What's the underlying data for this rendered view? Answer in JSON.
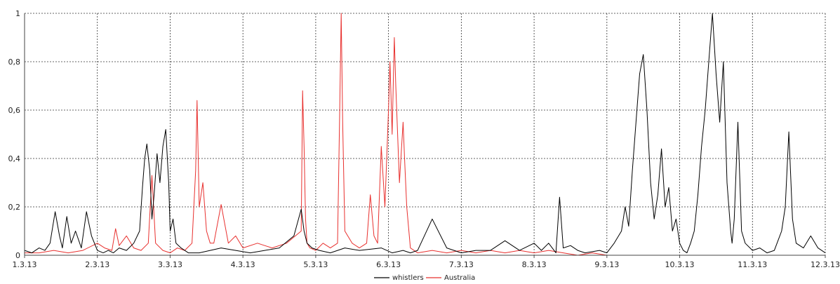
{
  "chart_data": {
    "type": "line",
    "title": "",
    "xlabel": "",
    "ylabel": "",
    "x_ticks": [
      "1.3.13",
      "2.3.13",
      "3.3.13",
      "4.3.13",
      "5.3.13",
      "6.3.13",
      "7.3.13",
      "8.3.13",
      "9.3.13",
      "10.3.13",
      "11.3.13",
      "12.3.13"
    ],
    "y_ticks": [
      "0",
      "0,2",
      "0,4",
      "0,6",
      "0,8",
      "1"
    ],
    "xlim": [
      1,
      12
    ],
    "ylim": [
      0,
      1
    ],
    "grid": true,
    "legend_position": "bottom-center",
    "series": [
      {
        "name": "whistlers",
        "color": "#000000",
        "x": [
          1.0,
          1.1,
          1.2,
          1.28,
          1.35,
          1.42,
          1.48,
          1.52,
          1.58,
          1.64,
          1.7,
          1.78,
          1.85,
          1.92,
          2.0,
          2.08,
          2.15,
          2.22,
          2.3,
          2.4,
          2.5,
          2.58,
          2.62,
          2.65,
          2.68,
          2.72,
          2.75,
          2.78,
          2.82,
          2.86,
          2.9,
          2.94,
          2.98,
          3.0,
          3.04,
          3.08,
          3.15,
          3.25,
          3.4,
          3.55,
          3.7,
          3.9,
          4.1,
          4.3,
          4.5,
          4.7,
          4.8,
          4.84,
          4.88,
          4.95,
          5.05,
          5.2,
          5.4,
          5.6,
          5.9,
          6.05,
          6.2,
          6.3,
          6.4,
          6.6,
          6.8,
          7.0,
          7.2,
          7.4,
          7.6,
          7.8,
          8.0,
          8.1,
          8.2,
          8.3,
          8.35,
          8.4,
          8.5,
          8.6,
          8.7,
          8.9,
          9.0,
          9.1,
          9.2,
          9.25,
          9.3,
          9.35,
          9.4,
          9.45,
          9.5,
          9.55,
          9.6,
          9.65,
          9.7,
          9.75,
          9.8,
          9.85,
          9.9,
          9.95,
          10.0,
          10.05,
          10.1,
          10.15,
          10.2,
          10.25,
          10.3,
          10.35,
          10.4,
          10.45,
          10.5,
          10.55,
          10.6,
          10.65,
          10.7,
          10.72,
          10.75,
          10.8,
          10.85,
          10.9,
          11.0,
          11.1,
          11.2,
          11.3,
          11.35,
          11.4,
          11.45,
          11.5,
          11.55,
          11.6,
          11.7,
          11.8,
          11.9,
          12.0
        ],
        "values": [
          0.02,
          0.01,
          0.03,
          0.02,
          0.05,
          0.18,
          0.08,
          0.03,
          0.16,
          0.05,
          0.1,
          0.03,
          0.18,
          0.08,
          0.02,
          0.01,
          0.02,
          0.01,
          0.03,
          0.02,
          0.05,
          0.1,
          0.28,
          0.4,
          0.46,
          0.35,
          0.15,
          0.25,
          0.42,
          0.3,
          0.45,
          0.52,
          0.3,
          0.1,
          0.15,
          0.05,
          0.03,
          0.01,
          0.01,
          0.02,
          0.03,
          0.02,
          0.01,
          0.02,
          0.03,
          0.08,
          0.19,
          0.1,
          0.05,
          0.03,
          0.02,
          0.01,
          0.03,
          0.02,
          0.03,
          0.01,
          0.02,
          0.01,
          0.02,
          0.15,
          0.03,
          0.01,
          0.02,
          0.02,
          0.06,
          0.02,
          0.05,
          0.02,
          0.05,
          0.01,
          0.24,
          0.03,
          0.04,
          0.02,
          0.01,
          0.02,
          0.01,
          0.05,
          0.1,
          0.2,
          0.12,
          0.35,
          0.55,
          0.75,
          0.83,
          0.6,
          0.3,
          0.15,
          0.25,
          0.44,
          0.2,
          0.28,
          0.1,
          0.15,
          0.05,
          0.02,
          0.01,
          0.05,
          0.1,
          0.25,
          0.45,
          0.6,
          0.8,
          1.0,
          0.75,
          0.55,
          0.8,
          0.3,
          0.1,
          0.05,
          0.15,
          0.55,
          0.1,
          0.05,
          0.02,
          0.03,
          0.01,
          0.02,
          0.06,
          0.1,
          0.2,
          0.51,
          0.15,
          0.05,
          0.03,
          0.08,
          0.03,
          0.01
        ]
      },
      {
        "name": "Australia",
        "color": "#e8302e",
        "x": [
          1.0,
          1.2,
          1.4,
          1.6,
          1.8,
          2.0,
          2.1,
          2.2,
          2.25,
          2.3,
          2.4,
          2.5,
          2.6,
          2.7,
          2.75,
          2.8,
          2.9,
          3.0,
          3.1,
          3.2,
          3.3,
          3.35,
          3.37,
          3.4,
          3.45,
          3.5,
          3.55,
          3.6,
          3.7,
          3.8,
          3.9,
          4.0,
          4.2,
          4.4,
          4.6,
          4.8,
          4.82,
          4.84,
          4.86,
          4.88,
          4.92,
          5.0,
          5.1,
          5.2,
          5.3,
          5.33,
          5.35,
          5.37,
          5.4,
          5.5,
          5.6,
          5.7,
          5.75,
          5.8,
          5.85,
          5.9,
          5.95,
          6.0,
          6.02,
          6.05,
          6.08,
          6.1,
          6.15,
          6.2,
          6.22,
          6.25,
          6.3,
          6.4,
          6.6,
          6.8,
          7.0,
          7.2,
          7.4,
          7.6,
          7.8,
          8.0,
          8.2,
          8.4,
          8.6,
          8.8,
          9.0,
          9.2,
          9.5,
          10.0,
          10.5,
          11.0,
          11.5,
          12.0
        ],
        "values": [
          0.01,
          0.01,
          0.02,
          0.01,
          0.02,
          0.05,
          0.03,
          0.02,
          0.11,
          0.04,
          0.08,
          0.03,
          0.02,
          0.05,
          0.33,
          0.05,
          0.02,
          0.01,
          0.03,
          0.02,
          0.05,
          0.35,
          0.64,
          0.2,
          0.3,
          0.1,
          0.05,
          0.05,
          0.21,
          0.05,
          0.08,
          0.03,
          0.05,
          0.03,
          0.05,
          0.1,
          0.68,
          0.45,
          0.15,
          0.05,
          0.03,
          0.02,
          0.05,
          0.03,
          0.05,
          0.6,
          1.0,
          0.55,
          0.1,
          0.05,
          0.03,
          0.05,
          0.25,
          0.08,
          0.05,
          0.45,
          0.2,
          0.6,
          0.8,
          0.5,
          0.9,
          0.7,
          0.3,
          0.55,
          0.4,
          0.2,
          0.03,
          0.01,
          0.02,
          0.01,
          0.02,
          0.01,
          0.02,
          0.01,
          0.02,
          0.01,
          0.02,
          0.01,
          0.0,
          0.01,
          0.0,
          0.0,
          0.0,
          0.0,
          0.0,
          0.0,
          0.0,
          0.0
        ]
      }
    ]
  }
}
